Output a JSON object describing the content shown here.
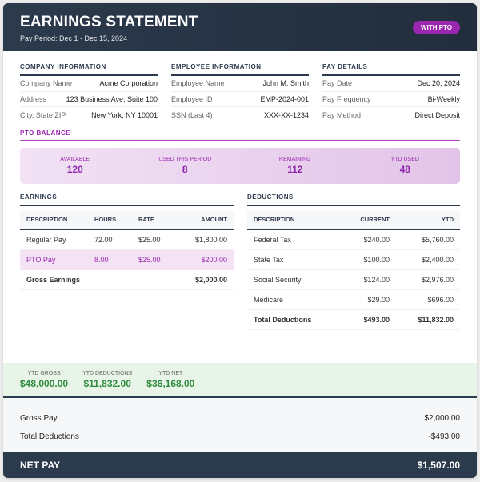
{
  "header": {
    "title": "EARNINGS STATEMENT",
    "pay_period": "Pay Period: Dec 1 - Dec 15, 2024",
    "badge": "WITH PTO"
  },
  "company": {
    "title": "COMPANY INFORMATION",
    "rows": [
      {
        "k": "Company Name",
        "v": "Acme Corporation"
      },
      {
        "k": "Address",
        "v": "123 Business Ave, Suite 100"
      },
      {
        "k": "City, State ZIP",
        "v": "New York, NY 10001"
      }
    ]
  },
  "employee": {
    "title": "EMPLOYEE INFORMATION",
    "rows": [
      {
        "k": "Employee Name",
        "v": "John M. Smith"
      },
      {
        "k": "Employee ID",
        "v": "EMP-2024-001"
      },
      {
        "k": "SSN (Last 4)",
        "v": "XXX-XX-1234"
      }
    ]
  },
  "pay_details": {
    "title": "PAY DETAILS",
    "rows": [
      {
        "k": "Pay Date",
        "v": "Dec 20, 2024"
      },
      {
        "k": "Pay Frequency",
        "v": "Bi-Weekly"
      },
      {
        "k": "Pay Method",
        "v": "Direct Deposit"
      }
    ]
  },
  "pto": {
    "title": "PTO BALANCE",
    "items": [
      {
        "label": "AVAILABLE",
        "value": "120"
      },
      {
        "label": "USED THIS PERIOD",
        "value": "8"
      },
      {
        "label": "REMAINING",
        "value": "112"
      },
      {
        "label": "YTD USED",
        "value": "48"
      }
    ]
  },
  "earnings": {
    "title": "EARNINGS",
    "headers": [
      "DESCRIPTION",
      "HOURS",
      "RATE",
      "AMOUNT"
    ],
    "rows": [
      [
        "Regular Pay",
        "72.00",
        "$25.00",
        "$1,800.00"
      ],
      [
        "PTO Pay",
        "8.00",
        "$25.00",
        "$200.00"
      ]
    ],
    "total": {
      "label": "Gross Earnings",
      "amount": "$2,000.00"
    }
  },
  "deductions": {
    "title": "DEDUCTIONS",
    "headers": [
      "DESCRIPTION",
      "CURRENT",
      "YTD"
    ],
    "rows": [
      [
        "Federal Tax",
        "$240.00",
        "$5,760.00"
      ],
      [
        "State Tax",
        "$100.00",
        "$2,400.00"
      ],
      [
        "Social Security",
        "$124.00",
        "$2,976.00"
      ],
      [
        "Medicare",
        "$29.00",
        "$696.00"
      ]
    ],
    "total": [
      "Total Deductions",
      "$493.00",
      "$11,832.00"
    ]
  },
  "ytd": [
    {
      "label": "YTD GROSS",
      "value": "$48,000.00"
    },
    {
      "label": "YTD DEDUCTIONS",
      "value": "$11,832.00"
    },
    {
      "label": "YTD NET",
      "value": "$36,168.00"
    }
  ],
  "summary": {
    "gross_label": "Gross Pay",
    "gross": "$2,000.00",
    "ded_label": "Total Deductions",
    "ded": "-$493.00"
  },
  "net": {
    "label": "NET PAY",
    "value": "$1,507.00"
  },
  "colors": {
    "header": "#2c3a4d",
    "pto_accent": "#9b27b0",
    "ytd_green": "#2e8b3e"
  }
}
